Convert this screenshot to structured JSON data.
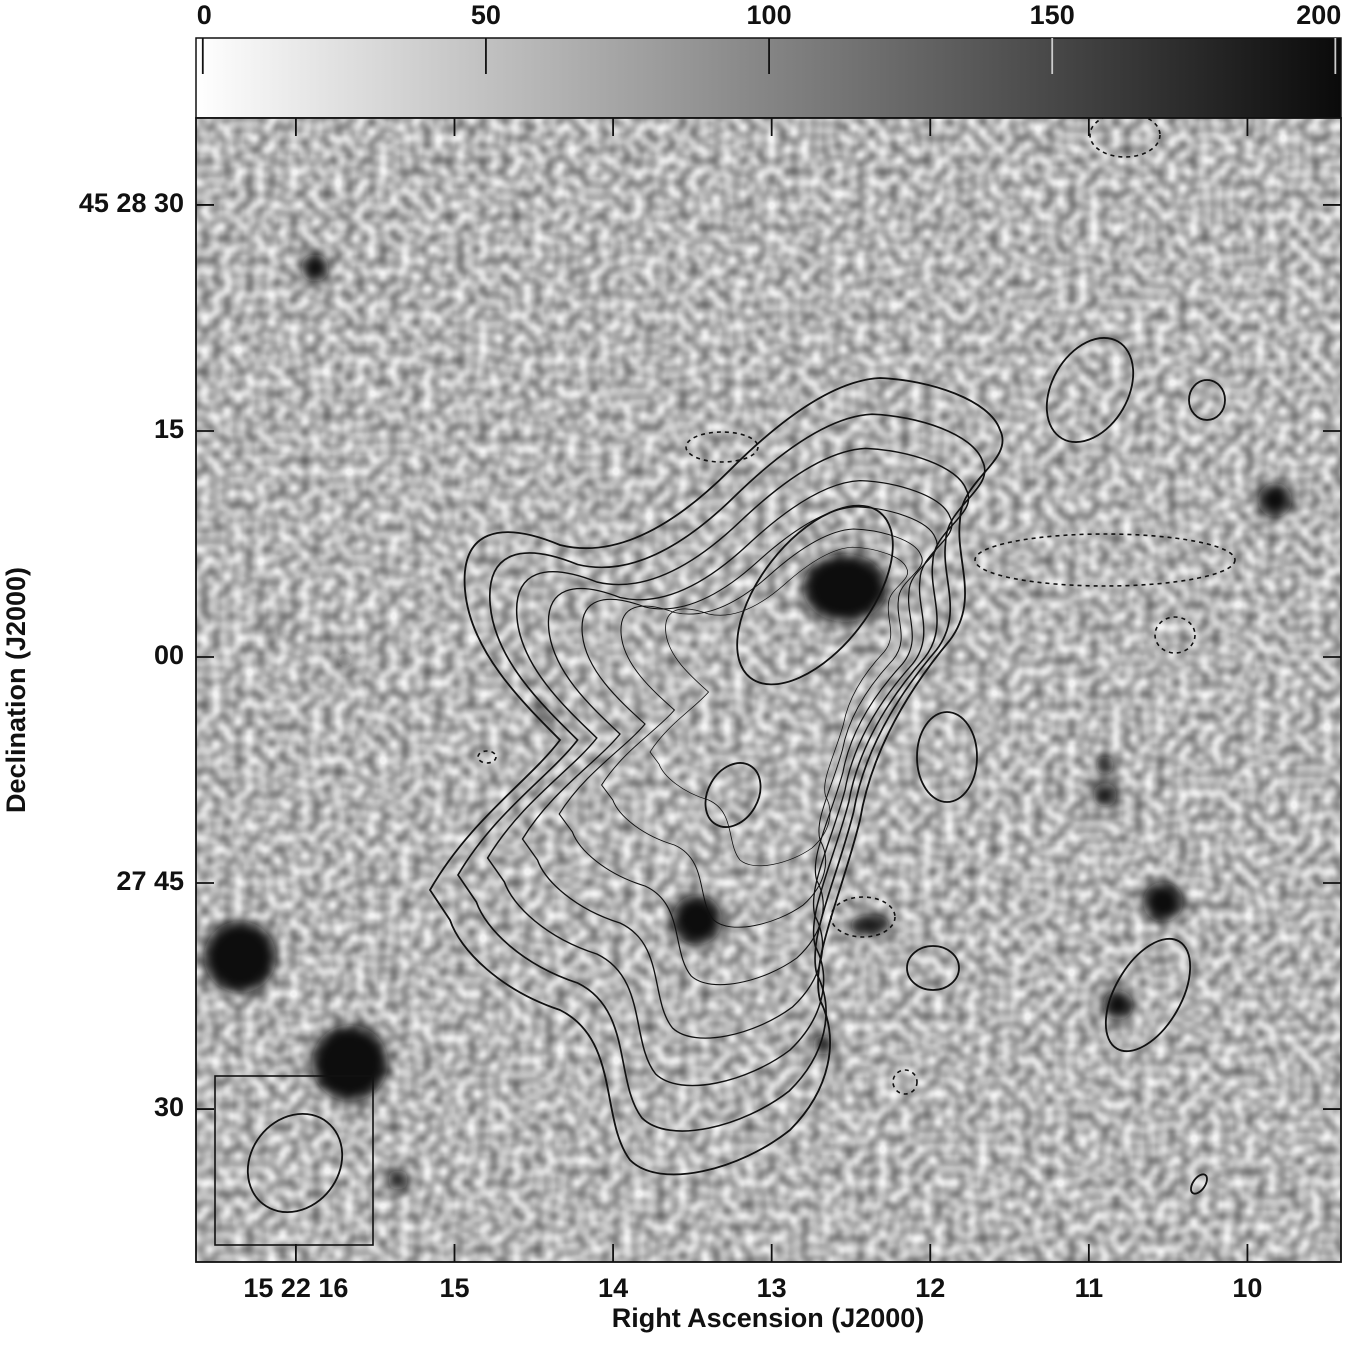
{
  "chart_data": {
    "type": "contour",
    "xlabel": "Right Ascension (J2000)",
    "ylabel": "Declination (J2000)",
    "xlim": [
      16.63,
      9.41
    ],
    "xticks": [
      {
        "value": 16,
        "label": "15 22 16"
      },
      15,
      14,
      13,
      12,
      11,
      10
    ],
    "ylim": [
      19.85,
      95.77
    ],
    "yticks": [
      {
        "value": 90,
        "label": "45 28 30"
      },
      {
        "value": 75,
        "label": "15"
      },
      {
        "value": 60,
        "label": "00"
      },
      {
        "value": 45,
        "label": "27 45"
      },
      30
    ],
    "colorbar": {
      "lim": [
        -1.2,
        201
      ],
      "ticks": [
        0,
        50,
        100,
        150,
        200
      ],
      "colormap": "gray"
    }
  }
}
